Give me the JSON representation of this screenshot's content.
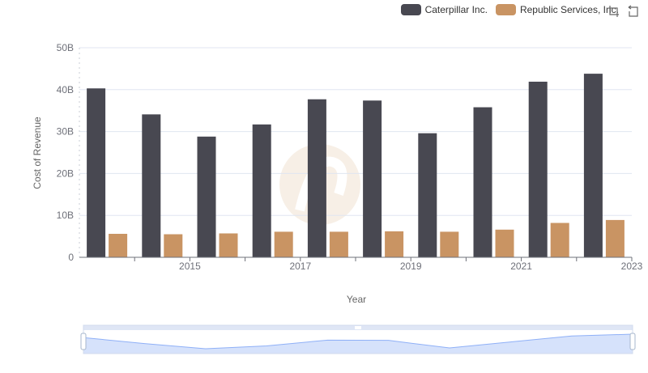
{
  "colors": {
    "caterpillar": "#484851",
    "republic": "#c99463",
    "axis": "#6e7079",
    "grid": "#e0e6f1",
    "zoom_fill": "#d6e2fb",
    "zoom_line": "#8fb0f7",
    "zoom_border": "#d2dbee",
    "watermark": "#f7efe6"
  },
  "toolbox": {
    "icons": [
      "zoom-icon",
      "restore-icon"
    ]
  },
  "chart_data": {
    "type": "bar",
    "title": "",
    "xlabel": "Year",
    "ylabel": "Cost of Revenue",
    "categories": [
      "2014",
      "2015",
      "2016",
      "2017",
      "2018",
      "2019",
      "2020",
      "2021",
      "2022",
      "2023"
    ],
    "x_tick_labels": [
      "2015",
      "2017",
      "2019",
      "2021",
      "2023"
    ],
    "y_tick_labels": [
      "0",
      "10B",
      "20B",
      "30B",
      "40B",
      "50B"
    ],
    "ylim": [
      0,
      50000000000
    ],
    "grid": true,
    "legend_position": "top-right",
    "series": [
      {
        "name": "Caterpillar Inc.",
        "color": "#484851",
        "values": [
          40300000000,
          34100000000,
          28800000000,
          31700000000,
          37700000000,
          37400000000,
          29600000000,
          35800000000,
          41900000000,
          43800000000
        ]
      },
      {
        "name": "Republic Services, Inc.",
        "color": "#c99463",
        "values": [
          5600000000,
          5500000000,
          5700000000,
          6100000000,
          6100000000,
          6200000000,
          6100000000,
          6600000000,
          8200000000,
          8900000000
        ]
      }
    ]
  }
}
